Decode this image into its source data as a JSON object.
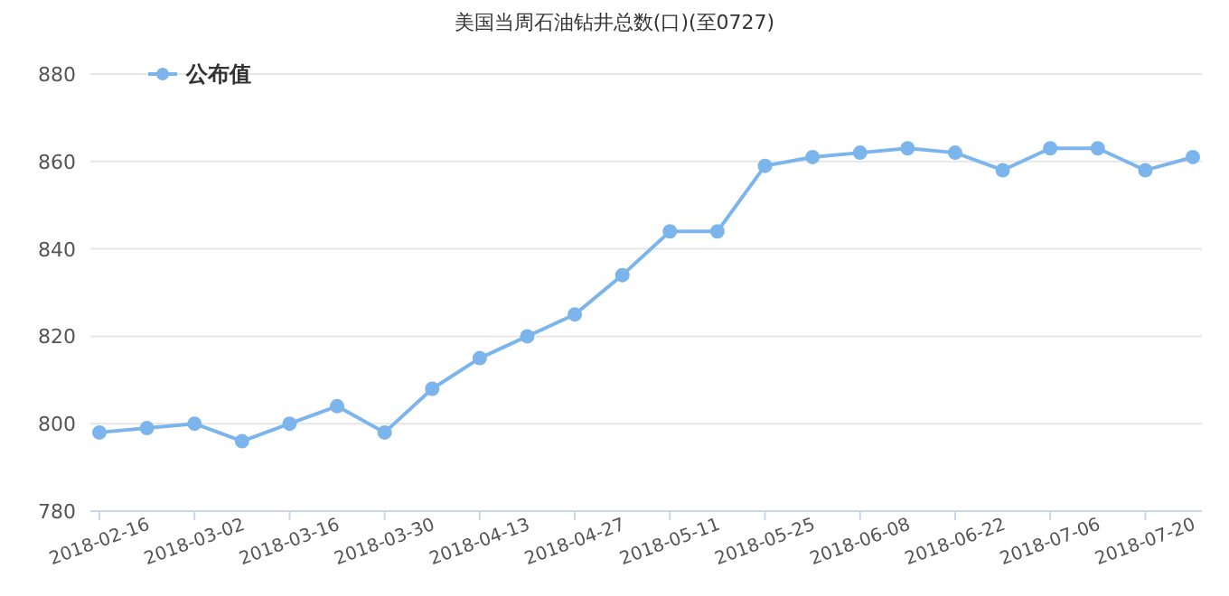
{
  "chart_data": {
    "type": "line",
    "title": "美国当周石油钻井总数(口)(至0727)",
    "categories": [
      "2018-02-16",
      null,
      "2018-03-02",
      null,
      "2018-03-16",
      null,
      "2018-03-30",
      null,
      "2018-04-13",
      null,
      "2018-04-27",
      null,
      "2018-05-11",
      null,
      "2018-05-25",
      null,
      "2018-06-08",
      null,
      "2018-06-22",
      null,
      "2018-07-06",
      null,
      "2018-07-20",
      null
    ],
    "series": [
      {
        "name": "公布值",
        "color": "#7cb5ec",
        "values": [
          798,
          799,
          800,
          796,
          800,
          804,
          798,
          808,
          815,
          820,
          825,
          834,
          844,
          844,
          859,
          861,
          862,
          863,
          862,
          858,
          863,
          863,
          858,
          861
        ]
      }
    ],
    "ylim": [
      780,
      880
    ],
    "yticks": [
      780,
      800,
      820,
      840,
      860,
      880
    ],
    "grid": "y",
    "legend": "top left",
    "marker": "circle"
  }
}
